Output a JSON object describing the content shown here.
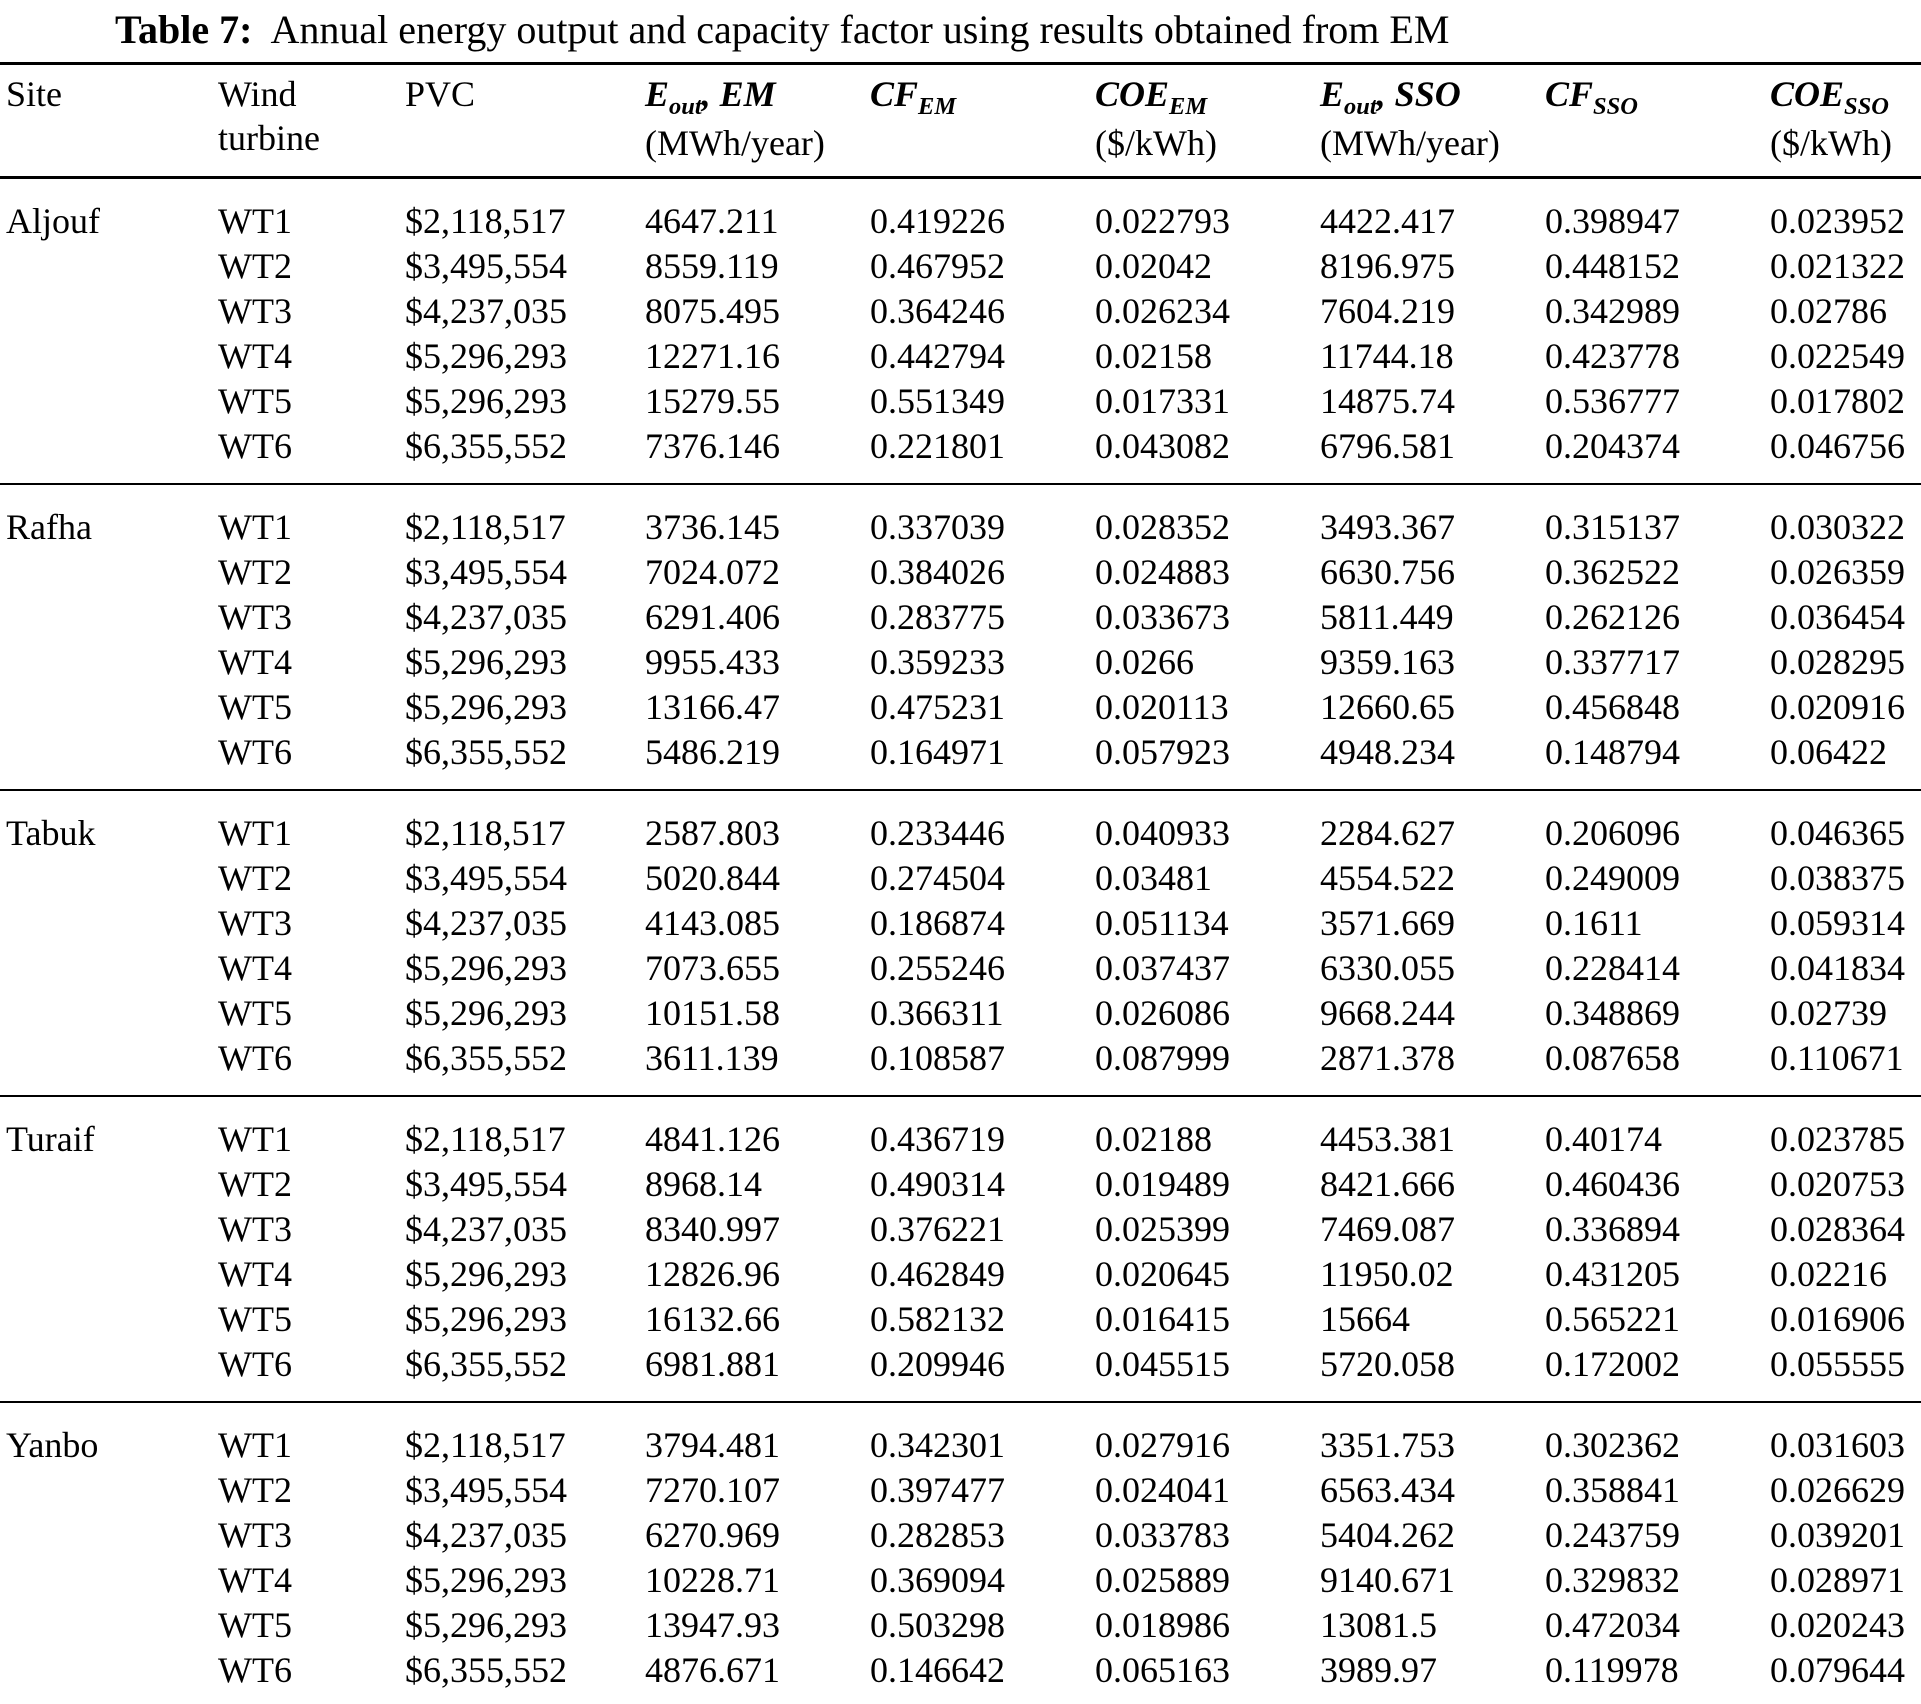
{
  "title": {
    "label": "Table 7:",
    "text": "Annual energy output and capacity factor using results obtained from EM"
  },
  "columns": [
    {
      "key": "site",
      "title": "Site"
    },
    {
      "key": "turbine",
      "title": "Wind",
      "title2": "turbine"
    },
    {
      "key": "pvc",
      "title": "PVC"
    },
    {
      "key": "eout_em",
      "math": "E",
      "sub": "out",
      "rest": ", EM",
      "unit": "(MWh/year)"
    },
    {
      "key": "cf_em",
      "math": "CF",
      "sub": "EM",
      "rest": "",
      "unit": ""
    },
    {
      "key": "coe_em",
      "math": "COE",
      "sub": "EM",
      "rest": "",
      "unit": "($/kWh)"
    },
    {
      "key": "eout_sso",
      "math": "E",
      "sub": "out",
      "rest": ", SSO",
      "unit": "(MWh/year)"
    },
    {
      "key": "cf_sso",
      "math": "CF",
      "sub": "SSO",
      "rest": "",
      "unit": ""
    },
    {
      "key": "coe_sso",
      "math": "COE",
      "sub": "SSO",
      "rest": "",
      "unit": "($/kWh)"
    }
  ],
  "groups": [
    {
      "site": "Aljouf",
      "rows": [
        {
          "turbine": "WT1",
          "pvc": "$2,118,517",
          "eout_em": "4647.211",
          "cf_em": "0.419226",
          "coe_em": "0.022793",
          "eout_sso": "4422.417",
          "cf_sso": "0.398947",
          "coe_sso": "0.023952"
        },
        {
          "turbine": "WT2",
          "pvc": "$3,495,554",
          "eout_em": "8559.119",
          "cf_em": "0.467952",
          "coe_em": "0.02042",
          "eout_sso": "8196.975",
          "cf_sso": "0.448152",
          "coe_sso": "0.021322"
        },
        {
          "turbine": "WT3",
          "pvc": "$4,237,035",
          "eout_em": "8075.495",
          "cf_em": "0.364246",
          "coe_em": "0.026234",
          "eout_sso": "7604.219",
          "cf_sso": "0.342989",
          "coe_sso": "0.02786"
        },
        {
          "turbine": "WT4",
          "pvc": "$5,296,293",
          "eout_em": "12271.16",
          "cf_em": "0.442794",
          "coe_em": "0.02158",
          "eout_sso": "11744.18",
          "cf_sso": "0.423778",
          "coe_sso": "0.022549"
        },
        {
          "turbine": "WT5",
          "pvc": "$5,296,293",
          "eout_em": "15279.55",
          "cf_em": "0.551349",
          "coe_em": "0.017331",
          "eout_sso": "14875.74",
          "cf_sso": "0.536777",
          "coe_sso": "0.017802"
        },
        {
          "turbine": "WT6",
          "pvc": "$6,355,552",
          "eout_em": "7376.146",
          "cf_em": "0.221801",
          "coe_em": "0.043082",
          "eout_sso": "6796.581",
          "cf_sso": "0.204374",
          "coe_sso": "0.046756"
        }
      ]
    },
    {
      "site": "Rafha",
      "rows": [
        {
          "turbine": "WT1",
          "pvc": "$2,118,517",
          "eout_em": "3736.145",
          "cf_em": "0.337039",
          "coe_em": "0.028352",
          "eout_sso": "3493.367",
          "cf_sso": "0.315137",
          "coe_sso": "0.030322"
        },
        {
          "turbine": "WT2",
          "pvc": "$3,495,554",
          "eout_em": "7024.072",
          "cf_em": "0.384026",
          "coe_em": "0.024883",
          "eout_sso": "6630.756",
          "cf_sso": "0.362522",
          "coe_sso": "0.026359"
        },
        {
          "turbine": "WT3",
          "pvc": "$4,237,035",
          "eout_em": "6291.406",
          "cf_em": "0.283775",
          "coe_em": "0.033673",
          "eout_sso": "5811.449",
          "cf_sso": "0.262126",
          "coe_sso": "0.036454"
        },
        {
          "turbine": "WT4",
          "pvc": "$5,296,293",
          "eout_em": "9955.433",
          "cf_em": "0.359233",
          "coe_em": "0.0266",
          "eout_sso": "9359.163",
          "cf_sso": "0.337717",
          "coe_sso": "0.028295"
        },
        {
          "turbine": "WT5",
          "pvc": "$5,296,293",
          "eout_em": "13166.47",
          "cf_em": "0.475231",
          "coe_em": "0.020113",
          "eout_sso": "12660.65",
          "cf_sso": "0.456848",
          "coe_sso": "0.020916"
        },
        {
          "turbine": "WT6",
          "pvc": "$6,355,552",
          "eout_em": "5486.219",
          "cf_em": "0.164971",
          "coe_em": "0.057923",
          "eout_sso": "4948.234",
          "cf_sso": "0.148794",
          "coe_sso": "0.06422"
        }
      ]
    },
    {
      "site": "Tabuk",
      "rows": [
        {
          "turbine": "WT1",
          "pvc": "$2,118,517",
          "eout_em": "2587.803",
          "cf_em": "0.233446",
          "coe_em": "0.040933",
          "eout_sso": "2284.627",
          "cf_sso": "0.206096",
          "coe_sso": "0.046365"
        },
        {
          "turbine": "WT2",
          "pvc": "$3,495,554",
          "eout_em": "5020.844",
          "cf_em": "0.274504",
          "coe_em": "0.03481",
          "eout_sso": "4554.522",
          "cf_sso": "0.249009",
          "coe_sso": "0.038375"
        },
        {
          "turbine": "WT3",
          "pvc": "$4,237,035",
          "eout_em": "4143.085",
          "cf_em": "0.186874",
          "coe_em": "0.051134",
          "eout_sso": "3571.669",
          "cf_sso": "0.1611",
          "coe_sso": "0.059314"
        },
        {
          "turbine": "WT4",
          "pvc": "$5,296,293",
          "eout_em": "7073.655",
          "cf_em": "0.255246",
          "coe_em": "0.037437",
          "eout_sso": "6330.055",
          "cf_sso": "0.228414",
          "coe_sso": "0.041834"
        },
        {
          "turbine": "WT5",
          "pvc": "$5,296,293",
          "eout_em": "10151.58",
          "cf_em": "0.366311",
          "coe_em": "0.026086",
          "eout_sso": "9668.244",
          "cf_sso": "0.348869",
          "coe_sso": "0.02739"
        },
        {
          "turbine": "WT6",
          "pvc": "$6,355,552",
          "eout_em": "3611.139",
          "cf_em": "0.108587",
          "coe_em": "0.087999",
          "eout_sso": "2871.378",
          "cf_sso": "0.087658",
          "coe_sso": "0.110671"
        }
      ]
    },
    {
      "site": "Turaif",
      "rows": [
        {
          "turbine": "WT1",
          "pvc": "$2,118,517",
          "eout_em": "4841.126",
          "cf_em": "0.436719",
          "coe_em": "0.02188",
          "eout_sso": "4453.381",
          "cf_sso": "0.40174",
          "coe_sso": "0.023785"
        },
        {
          "turbine": "WT2",
          "pvc": "$3,495,554",
          "eout_em": "8968.14",
          "cf_em": "0.490314",
          "coe_em": "0.019489",
          "eout_sso": "8421.666",
          "cf_sso": "0.460436",
          "coe_sso": "0.020753"
        },
        {
          "turbine": "WT3",
          "pvc": "$4,237,035",
          "eout_em": "8340.997",
          "cf_em": "0.376221",
          "coe_em": "0.025399",
          "eout_sso": "7469.087",
          "cf_sso": "0.336894",
          "coe_sso": "0.028364"
        },
        {
          "turbine": "WT4",
          "pvc": "$5,296,293",
          "eout_em": "12826.96",
          "cf_em": "0.462849",
          "coe_em": "0.020645",
          "eout_sso": "11950.02",
          "cf_sso": "0.431205",
          "coe_sso": "0.02216"
        },
        {
          "turbine": "WT5",
          "pvc": "$5,296,293",
          "eout_em": "16132.66",
          "cf_em": "0.582132",
          "coe_em": "0.016415",
          "eout_sso": "15664",
          "cf_sso": "0.565221",
          "coe_sso": "0.016906"
        },
        {
          "turbine": "WT6",
          "pvc": "$6,355,552",
          "eout_em": "6981.881",
          "cf_em": "0.209946",
          "coe_em": "0.045515",
          "eout_sso": "5720.058",
          "cf_sso": "0.172002",
          "coe_sso": "0.055555"
        }
      ]
    },
    {
      "site": "Yanbo",
      "rows": [
        {
          "turbine": "WT1",
          "pvc": "$2,118,517",
          "eout_em": "3794.481",
          "cf_em": "0.342301",
          "coe_em": "0.027916",
          "eout_sso": "3351.753",
          "cf_sso": "0.302362",
          "coe_sso": "0.031603"
        },
        {
          "turbine": "WT2",
          "pvc": "$3,495,554",
          "eout_em": "7270.107",
          "cf_em": "0.397477",
          "coe_em": "0.024041",
          "eout_sso": "6563.434",
          "cf_sso": "0.358841",
          "coe_sso": "0.026629"
        },
        {
          "turbine": "WT3",
          "pvc": "$4,237,035",
          "eout_em": "6270.969",
          "cf_em": "0.282853",
          "coe_em": "0.033783",
          "eout_sso": "5404.262",
          "cf_sso": "0.243759",
          "coe_sso": "0.039201"
        },
        {
          "turbine": "WT4",
          "pvc": "$5,296,293",
          "eout_em": "10228.71",
          "cf_em": "0.369094",
          "coe_em": "0.025889",
          "eout_sso": "9140.671",
          "cf_sso": "0.329832",
          "coe_sso": "0.028971"
        },
        {
          "turbine": "WT5",
          "pvc": "$5,296,293",
          "eout_em": "13947.93",
          "cf_em": "0.503298",
          "coe_em": "0.018986",
          "eout_sso": "13081.5",
          "cf_sso": "0.472034",
          "coe_sso": "0.020243"
        },
        {
          "turbine": "WT6",
          "pvc": "$6,355,552",
          "eout_em": "4876.671",
          "cf_em": "0.146642",
          "coe_em": "0.065163",
          "eout_sso": "3989.97",
          "cf_sso": "0.119978",
          "coe_sso": "0.079644"
        }
      ]
    }
  ]
}
